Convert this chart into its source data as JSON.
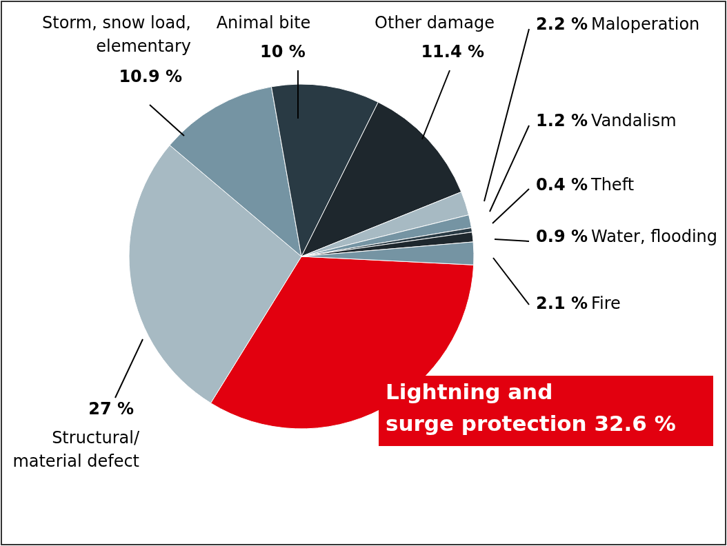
{
  "chart_data": {
    "type": "pie",
    "categories": [
      "Lightning and surge protection",
      "Structural/ material defect",
      "Storm, snow load, elementary",
      "Animal bite",
      "Other damage",
      "Maloperation",
      "Vandalism",
      "Theft",
      "Water, flooding",
      "Fire"
    ],
    "values": [
      32.6,
      27,
      10.9,
      10,
      11.4,
      2.2,
      1.2,
      0.4,
      0.9,
      2.1
    ],
    "value_labels": [
      "32.6 %",
      "27 %",
      "10.9 %",
      "10 %",
      "11.4 %",
      "2.2 %",
      "1.2 %",
      "0.4 %",
      "0.9 %",
      "2.1 %"
    ],
    "colors": [
      "#e2000f",
      "#a7bac3",
      "#7594a3",
      "#293a44",
      "#1e272d",
      "#a7bac3",
      "#7594a3",
      "#293a44",
      "#1e272d",
      "#7594a3"
    ]
  }
}
